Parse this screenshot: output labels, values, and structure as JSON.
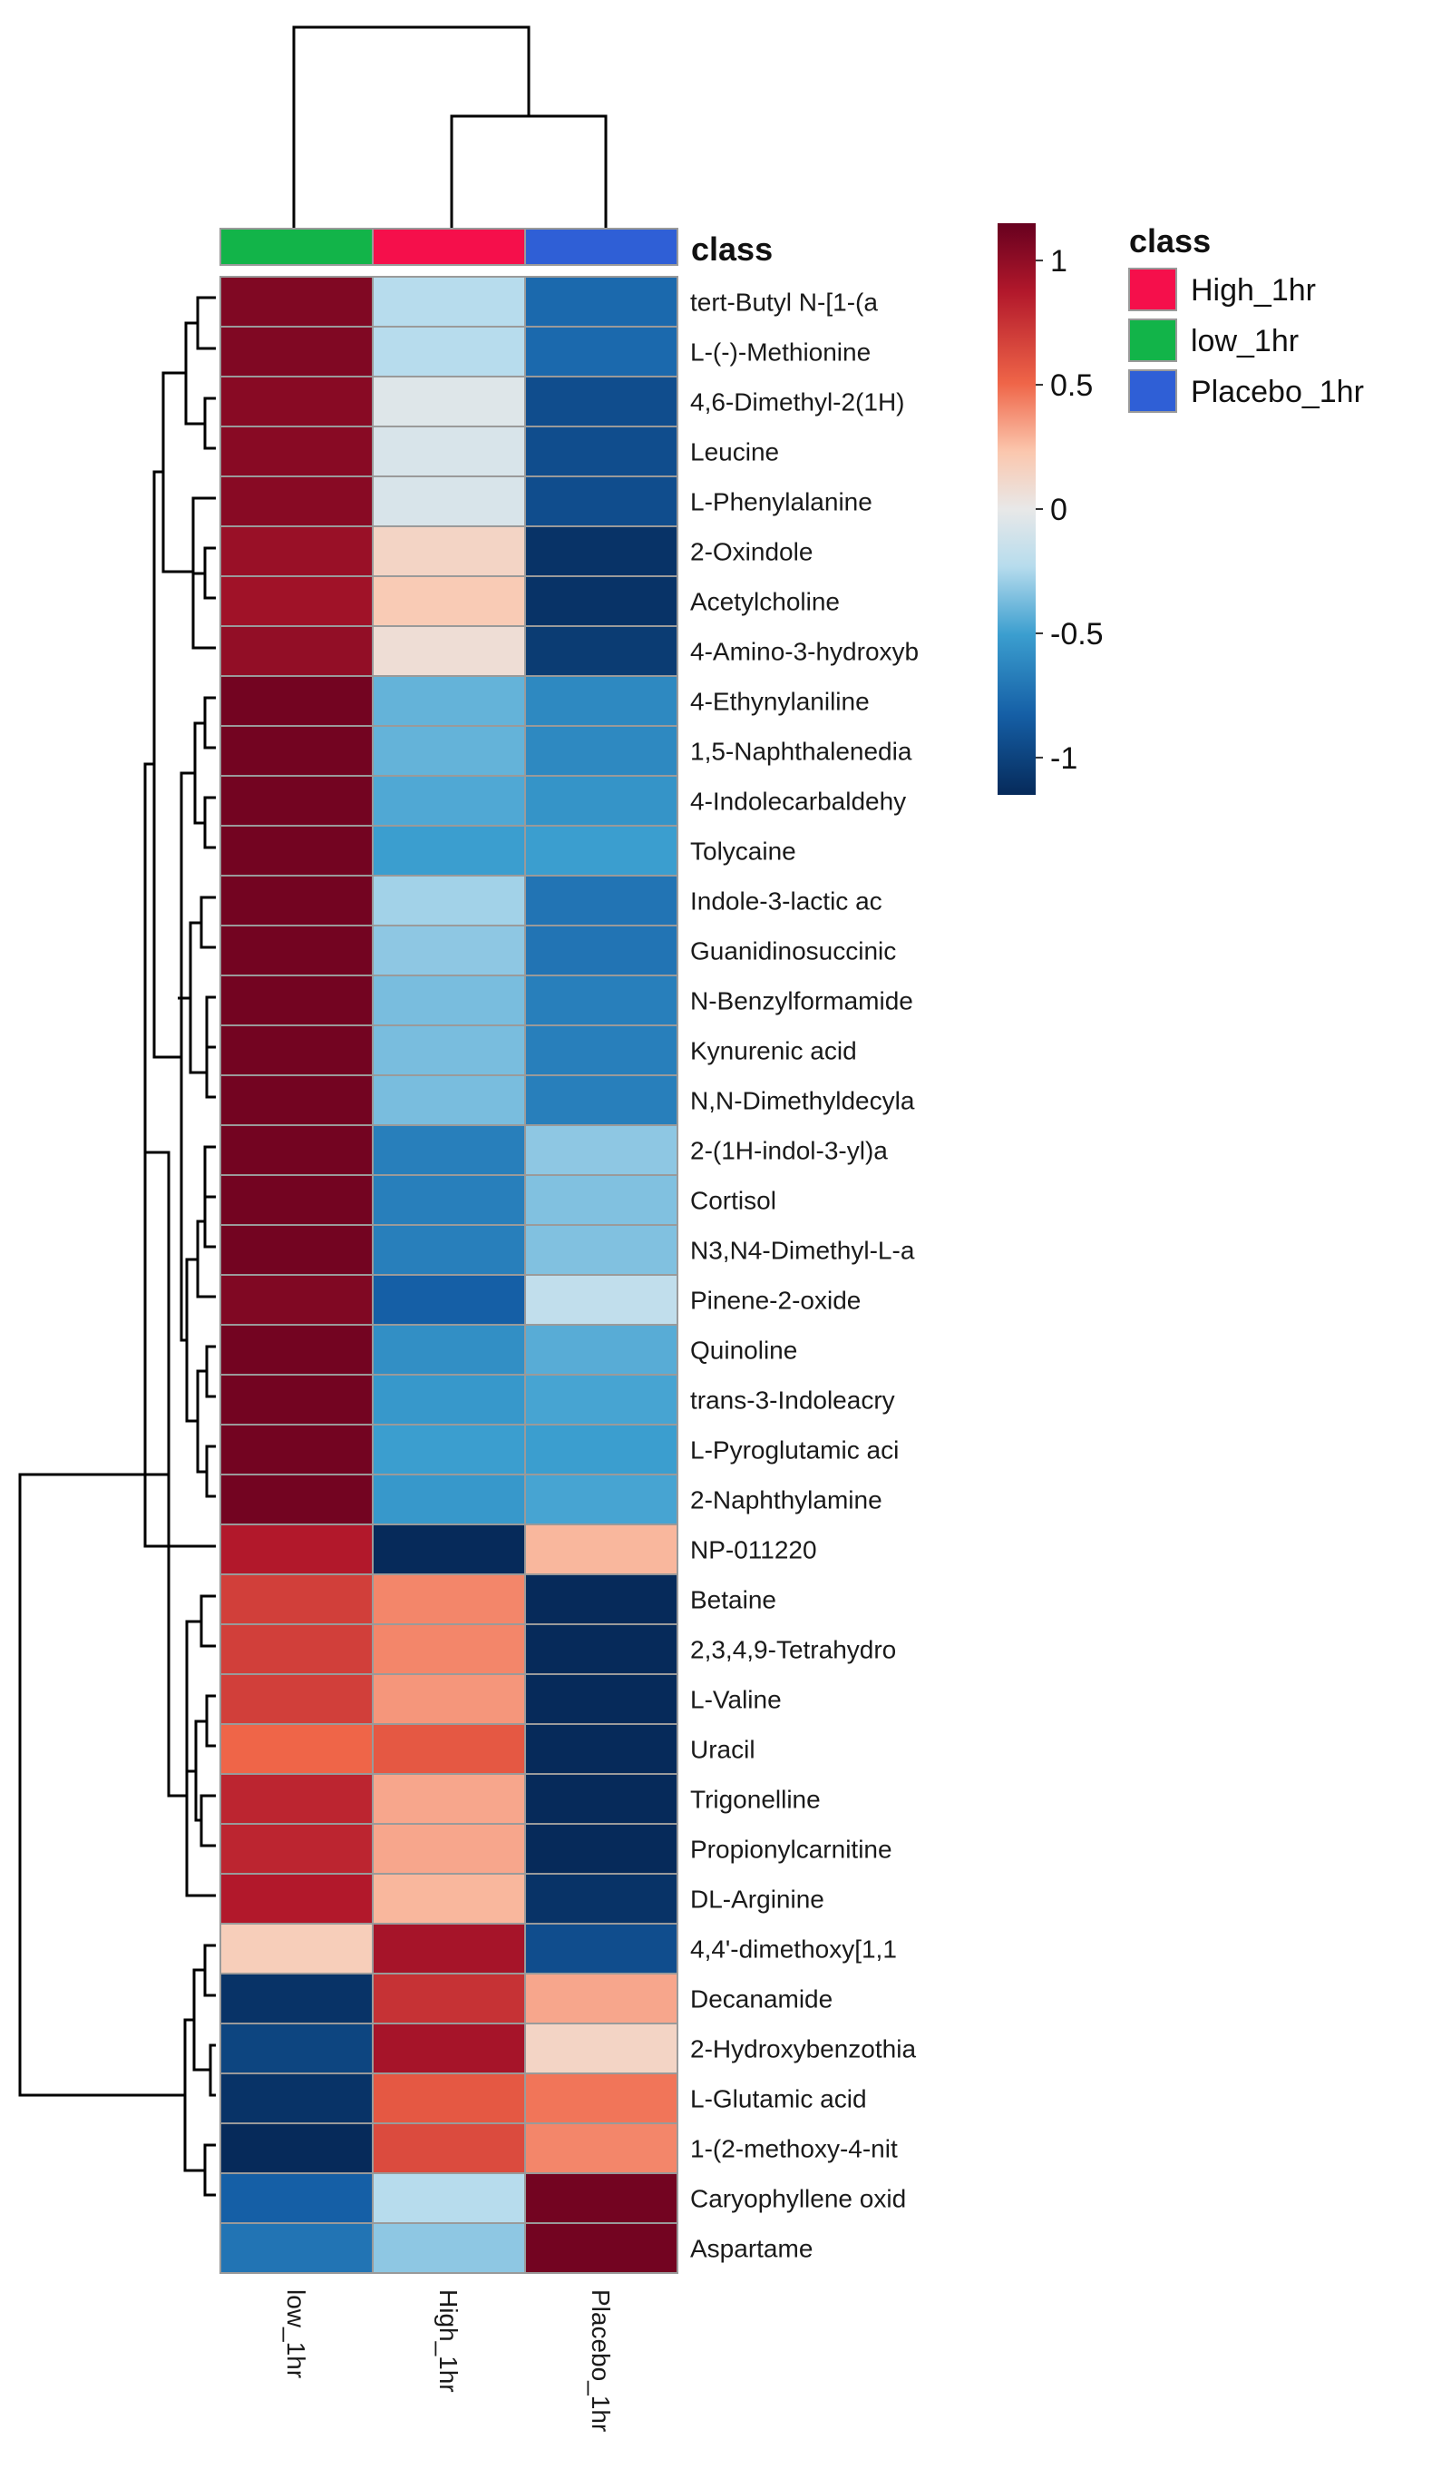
{
  "chart_data": {
    "type": "heatmap",
    "title": "",
    "columns": [
      "low_1hr",
      "High_1hr",
      "Placebo_1hr"
    ],
    "column_classes": [
      "low_1hr",
      "High_1hr",
      "Placebo_1hr"
    ],
    "rows": [
      "tert-Butyl N-[1-(a",
      "L-(-)-Methionine",
      "4,6-Dimethyl-2(1H)",
      "Leucine",
      "L-Phenylalanine",
      "2-Oxindole",
      "Acetylcholine",
      "4-Amino-3-hydroxyb",
      "4-Ethynylaniline",
      "1,5-Naphthalenedia",
      "4-Indolecarbaldehy",
      "Tolycaine",
      "Indole-3-lactic ac",
      "Guanidinosuccinic",
      "N-Benzylformamide",
      "Kynurenic acid",
      "N,N-Dimethyldecyla",
      "2-(1H-indol-3-yl)a",
      "Cortisol",
      "N3,N4-Dimethyl-L-a",
      "Pinene-2-oxide",
      "Quinoline",
      "trans-3-Indoleacry",
      "L-Pyroglutamic aci",
      "2-Naphthylamine",
      "NP-011220",
      "Betaine",
      "2,3,4,9-Tetrahydro",
      "L-Valine",
      "Uracil",
      "Trigonelline",
      "Propionylcarnitine",
      "DL-Arginine",
      "4,4'-dimethoxy[1,1",
      "Decanamide",
      "2-Hydroxybenzothia",
      "L-Glutamic acid",
      "1-(2-methoxy-4-nit",
      "Caryophyllene oxid",
      "Aspartame"
    ],
    "values": [
      [
        1.05,
        -0.25,
        -0.8
      ],
      [
        1.05,
        -0.25,
        -0.8
      ],
      [
        1.02,
        -0.05,
        -0.95
      ],
      [
        1.02,
        -0.08,
        -0.95
      ],
      [
        1.02,
        -0.08,
        -0.95
      ],
      [
        0.95,
        0.15,
        -1.1
      ],
      [
        0.92,
        0.22,
        -1.1
      ],
      [
        0.98,
        0.08,
        -1.05
      ],
      [
        1.1,
        -0.45,
        -0.65
      ],
      [
        1.1,
        -0.45,
        -0.65
      ],
      [
        1.1,
        -0.5,
        -0.6
      ],
      [
        1.1,
        -0.55,
        -0.55
      ],
      [
        1.1,
        -0.3,
        -0.75
      ],
      [
        1.1,
        -0.35,
        -0.75
      ],
      [
        1.1,
        -0.4,
        -0.7
      ],
      [
        1.1,
        -0.4,
        -0.7
      ],
      [
        1.1,
        -0.4,
        -0.7
      ],
      [
        1.1,
        -0.7,
        -0.35
      ],
      [
        1.1,
        -0.7,
        -0.38
      ],
      [
        1.1,
        -0.7,
        -0.38
      ],
      [
        1.05,
        -0.85,
        -0.2
      ],
      [
        1.1,
        -0.62,
        -0.48
      ],
      [
        1.1,
        -0.58,
        -0.52
      ],
      [
        1.1,
        -0.55,
        -0.55
      ],
      [
        1.1,
        -0.58,
        -0.52
      ],
      [
        0.85,
        -1.15,
        0.3
      ],
      [
        0.7,
        0.45,
        -1.15
      ],
      [
        0.7,
        0.45,
        -1.15
      ],
      [
        0.7,
        0.4,
        -1.15
      ],
      [
        0.55,
        0.6,
        -1.15
      ],
      [
        0.8,
        0.35,
        -1.15
      ],
      [
        0.8,
        0.35,
        -1.15
      ],
      [
        0.85,
        0.3,
        -1.1
      ],
      [
        0.2,
        0.9,
        -0.95
      ],
      [
        -1.1,
        0.75,
        0.35
      ],
      [
        -1.0,
        0.9,
        0.15
      ],
      [
        -1.1,
        0.6,
        0.5
      ],
      [
        -1.15,
        0.65,
        0.45
      ],
      [
        -0.85,
        -0.25,
        1.1
      ],
      [
        -0.75,
        -0.35,
        1.1
      ]
    ],
    "scale_ticks": [
      1,
      0.5,
      0,
      -0.5,
      -1
    ],
    "scale_range": [
      -1.15,
      1.15
    ],
    "legend": {
      "title": "class",
      "entries": [
        {
          "label": "High_1hr",
          "color": "#f50f4b"
        },
        {
          "label": "low_1hr",
          "color": "#12b449"
        },
        {
          "label": "Placebo_1hr",
          "color": "#2f5fd6"
        }
      ]
    },
    "annotation_title": "class"
  }
}
